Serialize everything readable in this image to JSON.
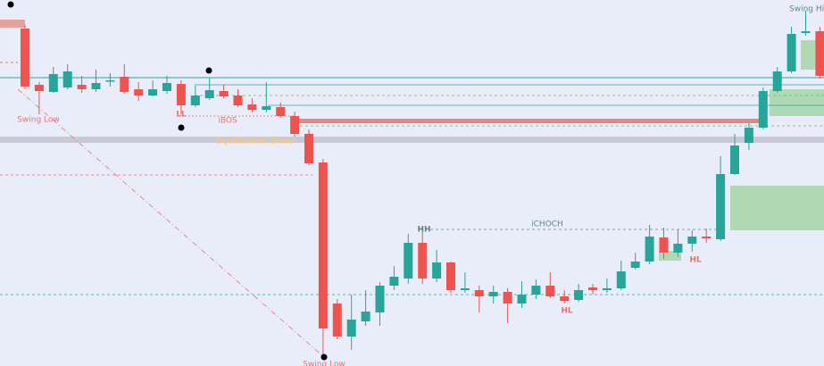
{
  "chart_data": {
    "type": "candlestick",
    "up_color": "#26a69a",
    "down_color": "#ef5350",
    "ylim": [
      0,
      410
    ],
    "open": [
      378,
      315,
      307,
      312,
      315,
      310,
      319,
      324,
      310,
      303,
      308,
      316,
      292,
      300,
      308,
      303,
      293,
      287,
      290,
      280,
      260,
      228,
      70,
      33,
      50,
      60,
      90,
      98,
      138,
      98,
      116,
      85,
      85,
      78,
      83,
      70,
      80,
      90,
      78,
      74,
      88,
      85,
      87,
      110,
      117,
      144,
      127,
      137,
      145,
      142,
      215,
      250,
      267,
      308,
      330,
      373,
      375
    ],
    "high": [
      382,
      318,
      335,
      338,
      325,
      332,
      328,
      338,
      318,
      320,
      325,
      320,
      314,
      323,
      315,
      310,
      300,
      318,
      295,
      285,
      265,
      232,
      75,
      80,
      85,
      94,
      112,
      148,
      154,
      130,
      117,
      105,
      90,
      90,
      87,
      95,
      97,
      105,
      85,
      92,
      92,
      98,
      118,
      127,
      158,
      155,
      153,
      152,
      154,
      235,
      260,
      272,
      312,
      335,
      380,
      398,
      380
    ],
    "low": [
      310,
      282,
      306,
      310,
      306,
      307,
      313,
      305,
      297,
      302,
      305,
      282,
      290,
      298,
      300,
      290,
      284,
      284,
      278,
      257,
      225,
      10,
      30,
      18,
      45,
      45,
      85,
      92,
      92,
      94,
      82,
      82,
      60,
      70,
      48,
      65,
      75,
      76,
      70,
      72,
      80,
      82,
      85,
      108,
      114,
      120,
      122,
      128,
      138,
      140,
      214,
      242,
      265,
      306,
      328,
      370,
      322
    ],
    "close": [
      313,
      308,
      327,
      330,
      310,
      317,
      320,
      307,
      303,
      310,
      317,
      292,
      303,
      309,
      302,
      292,
      287,
      291,
      280,
      260,
      227,
      42,
      33,
      52,
      61,
      90,
      100,
      138,
      98,
      116,
      85,
      87,
      78,
      83,
      70,
      80,
      90,
      78,
      73,
      85,
      85,
      87,
      106,
      117,
      145,
      127,
      137,
      145,
      143,
      215,
      247,
      267,
      308,
      330,
      372,
      375,
      325
    ],
    "annotations": [
      "Swing Low",
      "LL",
      "iBOS",
      "Equilibrium Zone",
      "HH",
      "iCHOCH",
      "HL",
      "HL",
      "Swing High",
      "Swing Low"
    ]
  }
}
